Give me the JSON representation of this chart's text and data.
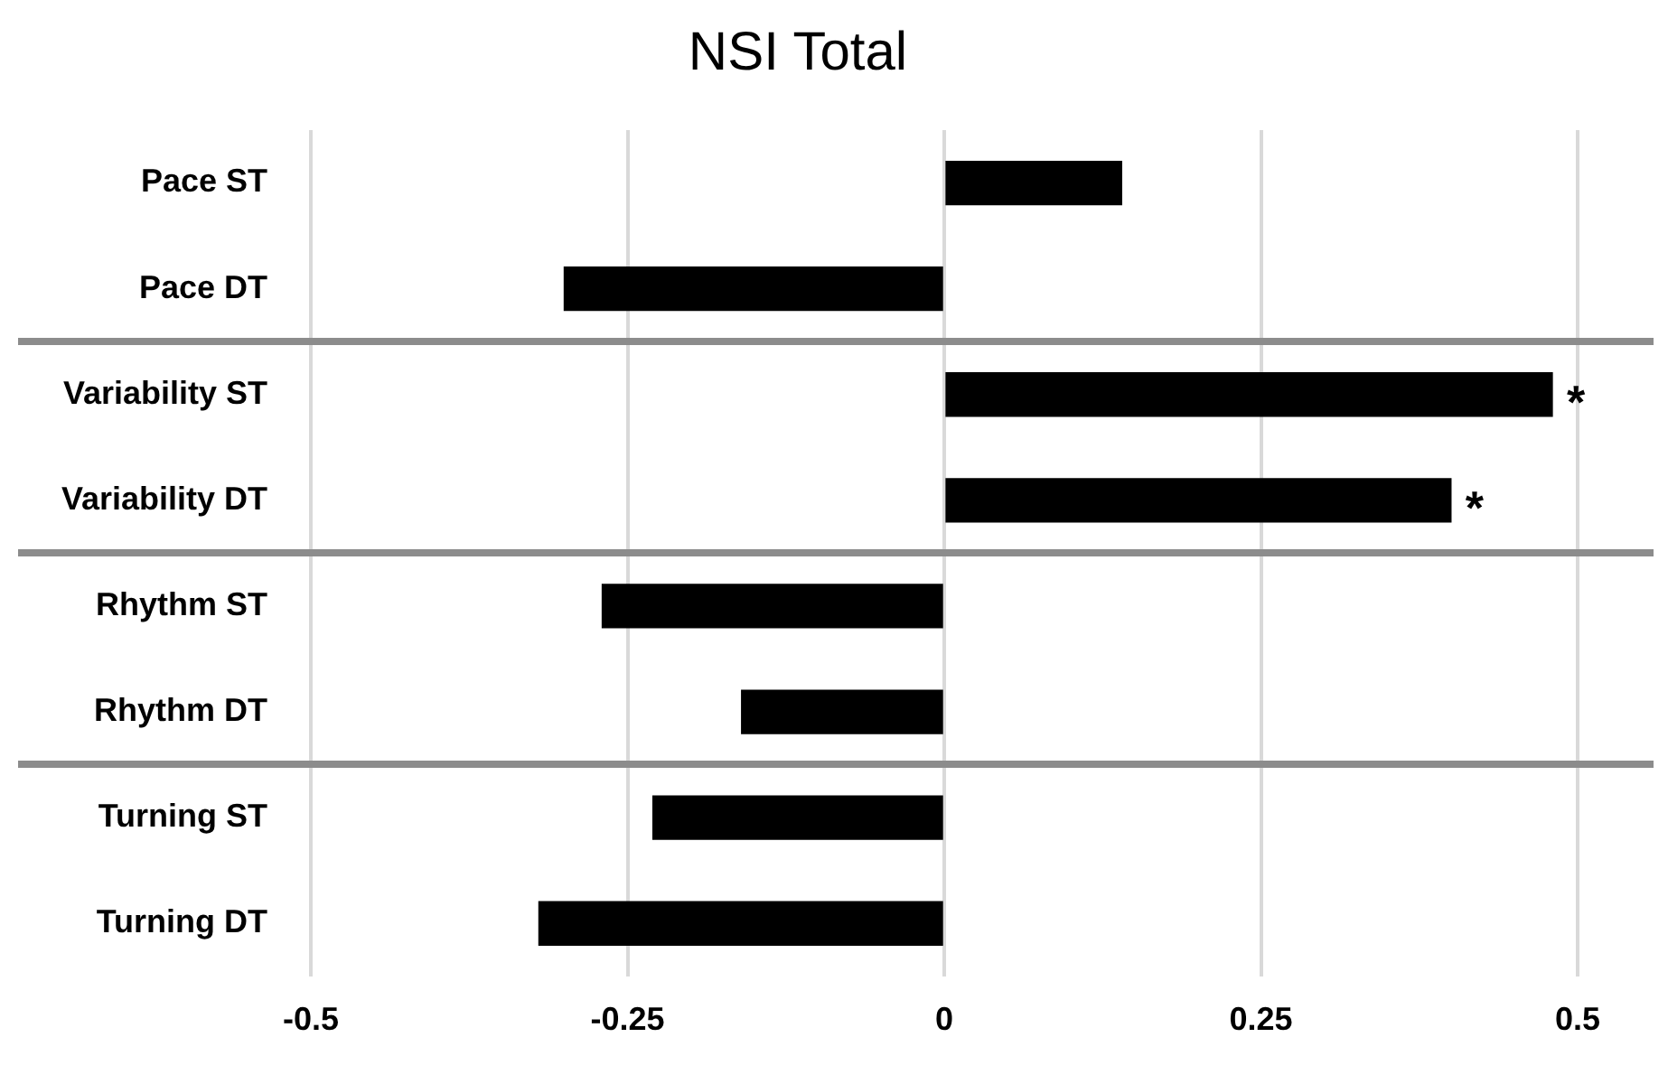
{
  "chart_data": {
    "type": "bar",
    "orientation": "horizontal",
    "title": "NSI Total",
    "categories": [
      "Pace ST",
      "Pace DT",
      "Variability ST",
      "Variability DT",
      "Rhythm ST",
      "Rhythm DT",
      "Turning ST",
      "Turning DT"
    ],
    "values": [
      0.14,
      -0.3,
      0.48,
      0.4,
      -0.27,
      -0.16,
      -0.23,
      -0.32
    ],
    "color": "#000000",
    "xlim": [
      -0.5,
      0.5
    ],
    "xticks": [
      -0.5,
      -0.25,
      0,
      0.25,
      0.5
    ],
    "grid": "x",
    "legend": false,
    "annotations": [
      {
        "text": "*",
        "x": 0.48,
        "y": "Variability ST"
      },
      {
        "text": "*",
        "x": 0.4,
        "y": "Variability DT"
      }
    ]
  }
}
